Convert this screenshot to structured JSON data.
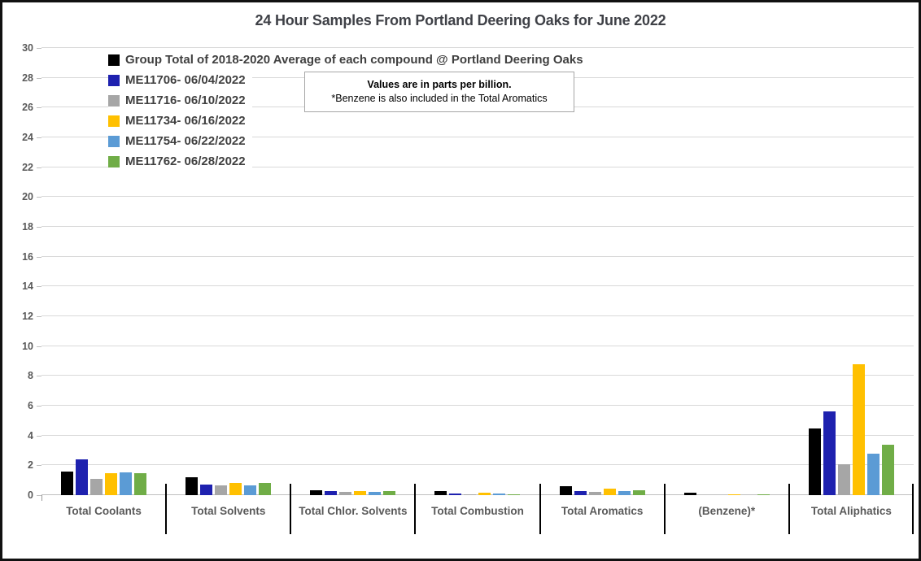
{
  "window": {
    "background": "#FFFFFF",
    "border_color": "#111111"
  },
  "annotation": {
    "line1": "Values are in parts per billion.",
    "line2": "*Benzene is also included in the Total Aromatics"
  },
  "colors": {
    "gridline": "#D9D9D9",
    "axis_line": "#C0C0C0",
    "axis_text": "#595959",
    "title_text": "#3F4147",
    "legend_text": "#404040",
    "category_separator": "#000000",
    "annotation_border": "#A6A6A6"
  },
  "chart_data": {
    "type": "bar",
    "title": "24 Hour Samples From Portland Deering Oaks for June 2022",
    "xlabel": "",
    "ylabel": "",
    "value_units": "parts per billion",
    "ylim": [
      0,
      30
    ],
    "ytick_step": 2,
    "grid": "horizontal",
    "legend_position": "top-left inside plot",
    "categories": [
      "Total Coolants",
      "Total Solvents",
      "Total Chlor. Solvents",
      "Total Combustion",
      "Total Aromatics",
      "(Benzene)*",
      "Total Aliphatics"
    ],
    "series": [
      {
        "name": "Group Total of 2018-2020 Average of each compound @ Portland Deering Oaks",
        "color": "#000000",
        "values": [
          1.6,
          1.2,
          0.35,
          0.25,
          0.6,
          0.18,
          4.5
        ]
      },
      {
        "name": "ME11706- 06/04/2022",
        "color": "#1E21AF",
        "values": [
          2.4,
          0.7,
          0.25,
          0.1,
          0.3,
          0,
          5.6
        ]
      },
      {
        "name": "ME11716- 06/10/2022",
        "color": "#A6A6A6",
        "values": [
          1.1,
          0.65,
          0.2,
          0.08,
          0.2,
          0,
          2.1
        ]
      },
      {
        "name": "ME11734- 06/16/2022",
        "color": "#FFC000",
        "values": [
          1.45,
          0.8,
          0.25,
          0.15,
          0.45,
          0.08,
          8.8
        ]
      },
      {
        "name": "ME11754- 06/22/2022",
        "color": "#5B9BD5",
        "values": [
          1.55,
          0.65,
          0.2,
          0.1,
          0.25,
          0,
          2.8
        ]
      },
      {
        "name": "ME11762- 06/28/2022",
        "color": "#70AD47",
        "values": [
          1.5,
          0.8,
          0.3,
          0.08,
          0.35,
          0.08,
          3.4
        ]
      }
    ]
  }
}
